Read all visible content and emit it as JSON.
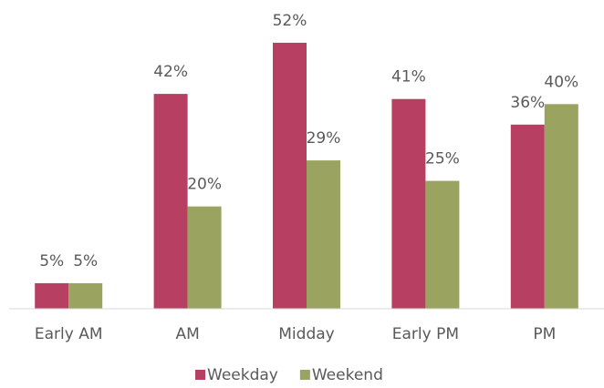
{
  "chart_data": {
    "type": "bar",
    "categories": [
      "Early AM",
      "AM",
      "Midday",
      "Early PM",
      "PM"
    ],
    "series": [
      {
        "name": "Weekday",
        "color": "#b73f62",
        "values": [
          5,
          42,
          52,
          41,
          36
        ],
        "value_labels": [
          "5%",
          "42%",
          "52%",
          "41%",
          "36%"
        ]
      },
      {
        "name": "Weekend",
        "color": "#9aa35f",
        "values": [
          5,
          20,
          29,
          25,
          40
        ],
        "value_labels": [
          "5%",
          "20%",
          "29%",
          "25%",
          "40%"
        ]
      }
    ],
    "ylim": [
      0,
      60
    ]
  }
}
